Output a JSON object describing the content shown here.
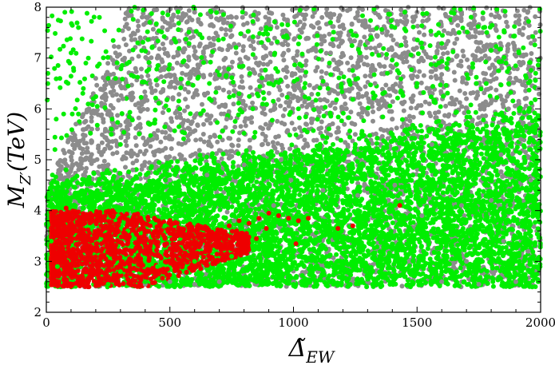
{
  "chart_data": {
    "type": "scatter",
    "title": "",
    "xlabel": "Δ̃_EW",
    "ylabel": "M_Z'(TeV)",
    "xlim": [
      0,
      2000
    ],
    "ylim": [
      2,
      8
    ],
    "x_ticks": [
      "0",
      "500",
      "1000",
      "1500",
      "2000"
    ],
    "y_ticks": [
      "2",
      "3",
      "4",
      "5",
      "6",
      "7",
      "8"
    ],
    "grid": false,
    "legend": "none",
    "colors": {
      "series_gray": "#8c8c8c",
      "series_green": "#00ee00",
      "series_red": "#ee0000"
    },
    "series": [
      {
        "color": "#8c8c8c",
        "description_regions": [
          {
            "x": [
              0,
              2000
            ],
            "y": [
              2.5,
              8.0
            ],
            "density": "dense above x=300"
          }
        ],
        "points": [
          [
            1600,
            2.6
          ],
          [
            1750,
            2.55
          ],
          [
            1900,
            2.6
          ],
          [
            1850,
            3.4
          ],
          [
            1950,
            3.2
          ],
          [
            1700,
            3.0
          ],
          [
            1450,
            2.7
          ],
          [
            1300,
            2.6
          ],
          [
            1150,
            2.6
          ],
          [
            1000,
            2.6
          ],
          [
            850,
            2.55
          ],
          [
            700,
            2.6
          ],
          [
            600,
            2.55
          ],
          [
            500,
            2.6
          ],
          [
            400,
            2.55
          ],
          [
            1800,
            4.2
          ],
          [
            1680,
            4.1
          ],
          [
            1520,
            3.9
          ],
          [
            1960,
            4.6
          ],
          [
            1920,
            5.4
          ],
          [
            1870,
            6.0
          ],
          [
            1990,
            6.4
          ],
          [
            1700,
            6.2
          ],
          [
            1550,
            6.1
          ],
          [
            1400,
            5.8
          ],
          [
            1250,
            5.5
          ],
          [
            1100,
            5.2
          ],
          [
            950,
            5.0
          ],
          [
            800,
            4.9
          ],
          [
            650,
            4.7
          ],
          [
            500,
            4.6
          ],
          [
            350,
            4.8
          ],
          [
            250,
            4.9
          ],
          [
            150,
            4.7
          ],
          [
            1620,
            6.8
          ],
          [
            1480,
            6.6
          ],
          [
            1330,
            6.5
          ],
          [
            1180,
            6.3
          ],
          [
            1030,
            6.2
          ],
          [
            880,
            6.0
          ],
          [
            730,
            5.8
          ],
          [
            580,
            5.6
          ],
          [
            430,
            5.4
          ],
          [
            330,
            5.6
          ],
          [
            1750,
            7.3
          ],
          [
            1600,
            7.2
          ],
          [
            1450,
            7.4
          ],
          [
            1300,
            7.3
          ],
          [
            1150,
            7.1
          ],
          [
            1000,
            7.0
          ],
          [
            850,
            6.9
          ],
          [
            700,
            6.8
          ],
          [
            550,
            6.7
          ],
          [
            420,
            6.5
          ],
          [
            310,
            6.2
          ],
          [
            230,
            5.8
          ],
          [
            1900,
            7.7
          ],
          [
            1800,
            7.85
          ],
          [
            1650,
            7.75
          ],
          [
            1500,
            7.9
          ],
          [
            1350,
            7.8
          ],
          [
            1200,
            7.95
          ],
          [
            1050,
            7.85
          ],
          [
            900,
            7.7
          ],
          [
            750,
            7.8
          ],
          [
            600,
            7.9
          ],
          [
            470,
            7.6
          ],
          [
            380,
            7.4
          ],
          [
            280,
            7.1
          ],
          [
            200,
            6.6
          ],
          [
            120,
            5.7
          ],
          [
            1980,
            7.5
          ],
          [
            1930,
            6.9
          ],
          [
            1410,
            4.5
          ],
          [
            1260,
            4.3
          ],
          [
            1120,
            4.4
          ],
          [
            990,
            4.6
          ],
          [
            1840,
            5.1
          ],
          [
            1560,
            5.3
          ],
          [
            760,
            3.8
          ],
          [
            920,
            4.1
          ]
        ]
      },
      {
        "color": "#00ee00",
        "description_regions": [
          {
            "x": [
              0,
              2000
            ],
            "y": [
              2.5,
              5.5
            ],
            "density": "dense"
          },
          {
            "x": [
              0,
              2000
            ],
            "y": [
              5.5,
              8.0
            ],
            "density": "sparse"
          }
        ],
        "points": [
          [
            40,
            5.8
          ],
          [
            55,
            6.6
          ],
          [
            70,
            5.9
          ],
          [
            130,
            7.6
          ],
          [
            150,
            6.4
          ],
          [
            100,
            7.1
          ],
          [
            110,
            6.8
          ],
          [
            80,
            4.8
          ],
          [
            160,
            6.9
          ],
          [
            170,
            7.0
          ],
          [
            215,
            7.8
          ],
          [
            250,
            6.6
          ],
          [
            280,
            6.6
          ],
          [
            95,
            6.9
          ],
          [
            75,
            7.9
          ],
          [
            105,
            5.9
          ],
          [
            130,
            5.9
          ],
          [
            190,
            6.2
          ],
          [
            35,
            5.2
          ],
          [
            25,
            4.7
          ],
          [
            60,
            4.2
          ],
          [
            20,
            3.4
          ],
          [
            45,
            2.9
          ],
          [
            300,
            5.3
          ],
          [
            420,
            5.7
          ],
          [
            540,
            6.0
          ],
          [
            660,
            6.2
          ],
          [
            780,
            6.3
          ],
          [
            900,
            6.5
          ],
          [
            1020,
            6.0
          ],
          [
            1140,
            6.4
          ],
          [
            1260,
            6.6
          ],
          [
            1380,
            6.7
          ],
          [
            1500,
            6.5
          ],
          [
            1620,
            6.8
          ],
          [
            1740,
            6.5
          ],
          [
            1860,
            6.9
          ],
          [
            1980,
            6.7
          ],
          [
            1930,
            7.2
          ],
          [
            1670,
            7.5
          ],
          [
            1410,
            7.6
          ],
          [
            1150,
            7.7
          ],
          [
            890,
            7.6
          ],
          [
            630,
            7.4
          ],
          [
            370,
            7.3
          ],
          [
            1990,
            5.8
          ],
          [
            1850,
            5.6
          ],
          [
            1700,
            5.7
          ],
          [
            1550,
            5.6
          ],
          [
            1400,
            5.5
          ],
          [
            1250,
            5.3
          ],
          [
            1100,
            5.2
          ],
          [
            950,
            5.1
          ],
          [
            800,
            5.0
          ],
          [
            650,
            4.9
          ],
          [
            500,
            4.7
          ],
          [
            350,
            4.6
          ],
          [
            200,
            4.5
          ],
          [
            1980,
            4.7
          ],
          [
            1830,
            4.6
          ],
          [
            1680,
            4.5
          ],
          [
            1530,
            4.4
          ],
          [
            1380,
            4.3
          ],
          [
            1230,
            4.2
          ],
          [
            1080,
            4.1
          ],
          [
            930,
            4.0
          ],
          [
            780,
            3.9
          ],
          [
            630,
            3.8
          ],
          [
            480,
            3.7
          ],
          [
            330,
            3.6
          ],
          [
            1950,
            3.9
          ],
          [
            1800,
            3.8
          ],
          [
            1650,
            3.7
          ],
          [
            1500,
            3.6
          ],
          [
            1350,
            3.5
          ],
          [
            1200,
            3.4
          ],
          [
            1050,
            3.3
          ],
          [
            900,
            3.2
          ],
          [
            750,
            3.1
          ],
          [
            600,
            3.0
          ],
          [
            450,
            2.9
          ],
          [
            300,
            2.8
          ],
          [
            1900,
            3.0
          ],
          [
            1750,
            2.9
          ],
          [
            1600,
            2.8
          ],
          [
            1450,
            2.7
          ],
          [
            1300,
            2.65
          ],
          [
            1150,
            2.6
          ],
          [
            1000,
            2.55
          ],
          [
            850,
            2.6
          ],
          [
            700,
            2.7
          ],
          [
            550,
            2.6
          ],
          [
            400,
            2.6
          ],
          [
            250,
            2.55
          ],
          [
            1990,
            2.6
          ],
          [
            1960,
            3.5
          ],
          [
            1880,
            4.2
          ],
          [
            1720,
            4.9
          ],
          [
            1580,
            5.1
          ],
          [
            1440,
            4.8
          ],
          [
            1290,
            4.7
          ],
          [
            1160,
            4.6
          ],
          [
            1010,
            4.4
          ],
          [
            870,
            4.3
          ],
          [
            720,
            4.2
          ],
          [
            580,
            4.1
          ],
          [
            430,
            4.0
          ],
          [
            290,
            3.9
          ],
          [
            1440,
            4.1
          ]
        ]
      },
      {
        "color": "#ee0000",
        "description_regions": [
          {
            "x": [
              0,
              900
            ],
            "y": [
              2.5,
              4.0
            ],
            "density": "dense below x=600"
          }
        ],
        "points": [
          [
            80,
            4.05
          ],
          [
            120,
            3.9
          ],
          [
            160,
            3.85
          ],
          [
            210,
            3.8
          ],
          [
            260,
            3.9
          ],
          [
            300,
            3.85
          ],
          [
            340,
            3.75
          ],
          [
            380,
            3.8
          ],
          [
            420,
            3.7
          ],
          [
            460,
            3.6
          ],
          [
            500,
            3.55
          ],
          [
            540,
            3.6
          ],
          [
            580,
            3.65
          ],
          [
            620,
            3.5
          ],
          [
            660,
            3.55
          ],
          [
            700,
            3.6
          ],
          [
            740,
            3.7
          ],
          [
            780,
            3.8
          ],
          [
            820,
            3.75
          ],
          [
            860,
            3.85
          ],
          [
            900,
            3.95
          ],
          [
            940,
            3.9
          ],
          [
            980,
            3.85
          ],
          [
            1020,
            3.8
          ],
          [
            1060,
            3.85
          ],
          [
            1010,
            3.35
          ],
          [
            1180,
            3.65
          ],
          [
            1240,
            3.7
          ],
          [
            1430,
            4.1
          ],
          [
            50,
            2.6
          ],
          [
            90,
            2.55
          ],
          [
            130,
            2.6
          ],
          [
            170,
            2.65
          ],
          [
            210,
            2.6
          ],
          [
            250,
            2.7
          ],
          [
            290,
            2.6
          ],
          [
            330,
            2.65
          ],
          [
            370,
            2.7
          ],
          [
            410,
            2.75
          ],
          [
            450,
            2.8
          ],
          [
            490,
            2.85
          ],
          [
            530,
            2.9
          ],
          [
            570,
            3.0
          ],
          [
            610,
            3.1
          ],
          [
            650,
            3.25
          ],
          [
            690,
            3.4
          ],
          [
            730,
            3.5
          ],
          [
            770,
            3.6
          ],
          [
            810,
            3.55
          ],
          [
            850,
            3.45
          ],
          [
            890,
            3.65
          ],
          [
            60,
            3.2
          ],
          [
            100,
            3.4
          ],
          [
            140,
            3.6
          ],
          [
            180,
            3.3
          ],
          [
            220,
            3.1
          ],
          [
            260,
            3.5
          ],
          [
            300,
            3.2
          ],
          [
            340,
            3.0
          ],
          [
            380,
            3.4
          ],
          [
            420,
            3.3
          ],
          [
            460,
            3.1
          ],
          [
            500,
            3.25
          ],
          [
            540,
            3.15
          ],
          [
            580,
            3.3
          ],
          [
            620,
            3.35
          ],
          [
            660,
            3.2
          ],
          [
            700,
            3.45
          ],
          [
            240,
            3.7
          ],
          [
            320,
            3.55
          ],
          [
            400,
            3.6
          ],
          [
            480,
            3.45
          ],
          [
            560,
            3.5
          ],
          [
            600,
            3.4
          ],
          [
            150,
            2.8
          ],
          [
            110,
            3.0
          ],
          [
            70,
            3.7
          ],
          [
            30,
            3.5
          ],
          [
            40,
            2.8
          ]
        ]
      }
    ]
  }
}
